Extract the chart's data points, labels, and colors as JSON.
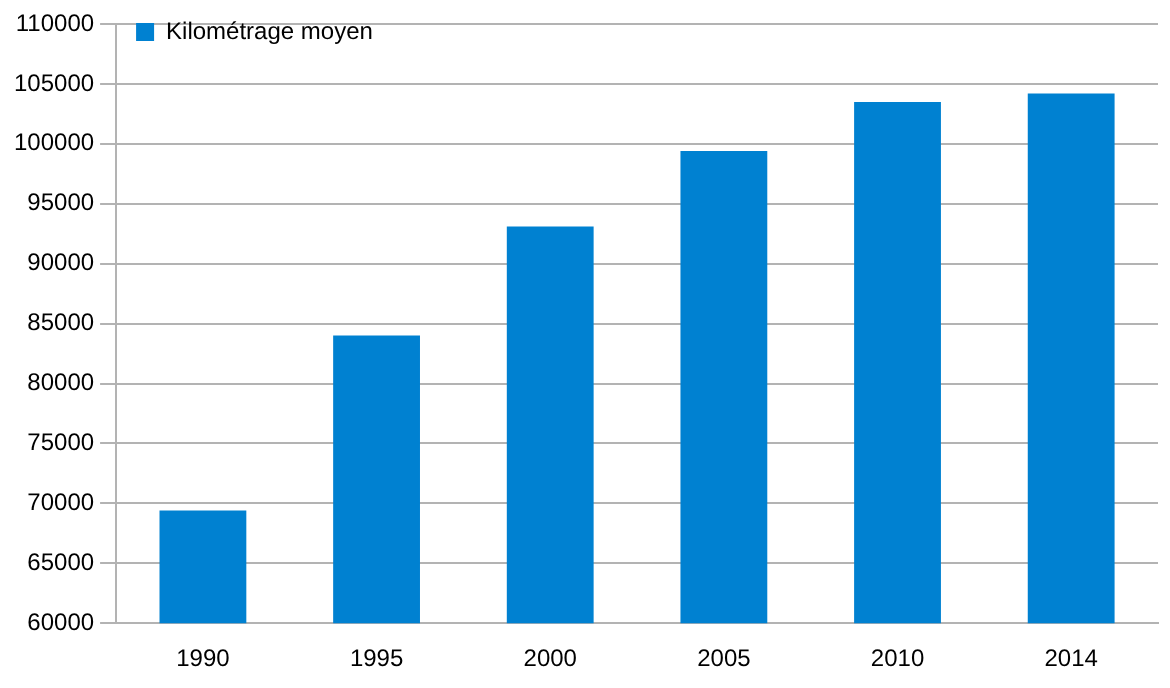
{
  "chart_data": {
    "type": "bar",
    "categories": [
      "1990",
      "1995",
      "2000",
      "2005",
      "2010",
      "2014"
    ],
    "series": [
      {
        "name": "Kilométrage moyen",
        "color": "#0081d1",
        "values": [
          69400,
          84000,
          93100,
          99400,
          103500,
          104200
        ]
      }
    ],
    "ylim": [
      60000,
      110000
    ],
    "yticks": [
      60000,
      65000,
      70000,
      75000,
      80000,
      85000,
      90000,
      95000,
      100000,
      105000,
      110000
    ],
    "grid": "y",
    "legend": "top left"
  }
}
